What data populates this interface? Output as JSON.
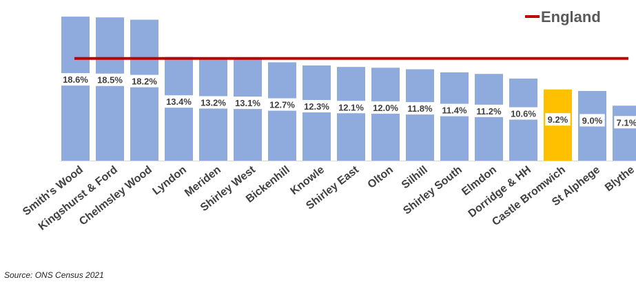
{
  "chart_data": {
    "type": "bar",
    "categories": [
      "Smith's Wood",
      "Kingshurst & Ford",
      "Chelmsley Wood",
      "Lyndon",
      "Meriden",
      "Shirley West",
      "Bickenhill",
      "Knowle",
      "Shirley East",
      "Olton",
      "Silhill",
      "Shirley South",
      "Elmdon",
      "Dorridge & HH",
      "Castle Bromwich",
      "St Alphege",
      "Blythe"
    ],
    "values": [
      18.6,
      18.5,
      18.2,
      13.4,
      13.2,
      13.1,
      12.7,
      12.3,
      12.1,
      12.0,
      11.8,
      11.4,
      11.2,
      10.6,
      9.2,
      9.0,
      7.1
    ],
    "data_labels": [
      "18.6%",
      "18.5%",
      "18.2%",
      "13.4%",
      "13.2%",
      "13.1%",
      "12.7%",
      "12.3%",
      "12.1%",
      "12.0%",
      "11.8%",
      "11.4%",
      "11.2%",
      "10.6%",
      "9.2%",
      "9.0%",
      "7.1%"
    ],
    "highlight_index": 14,
    "reference_line": {
      "name": "England",
      "value": 13.2
    },
    "ylim": [
      0,
      19.5
    ],
    "grid": false,
    "legend": {
      "position": "top-right",
      "entries": [
        "England"
      ]
    },
    "colors": {
      "bar": "#8faadc",
      "highlight": "#ffc000",
      "reference": "#c00000"
    },
    "title": "",
    "xlabel": "",
    "ylabel": ""
  },
  "source": "Source: ONS Census 2021"
}
